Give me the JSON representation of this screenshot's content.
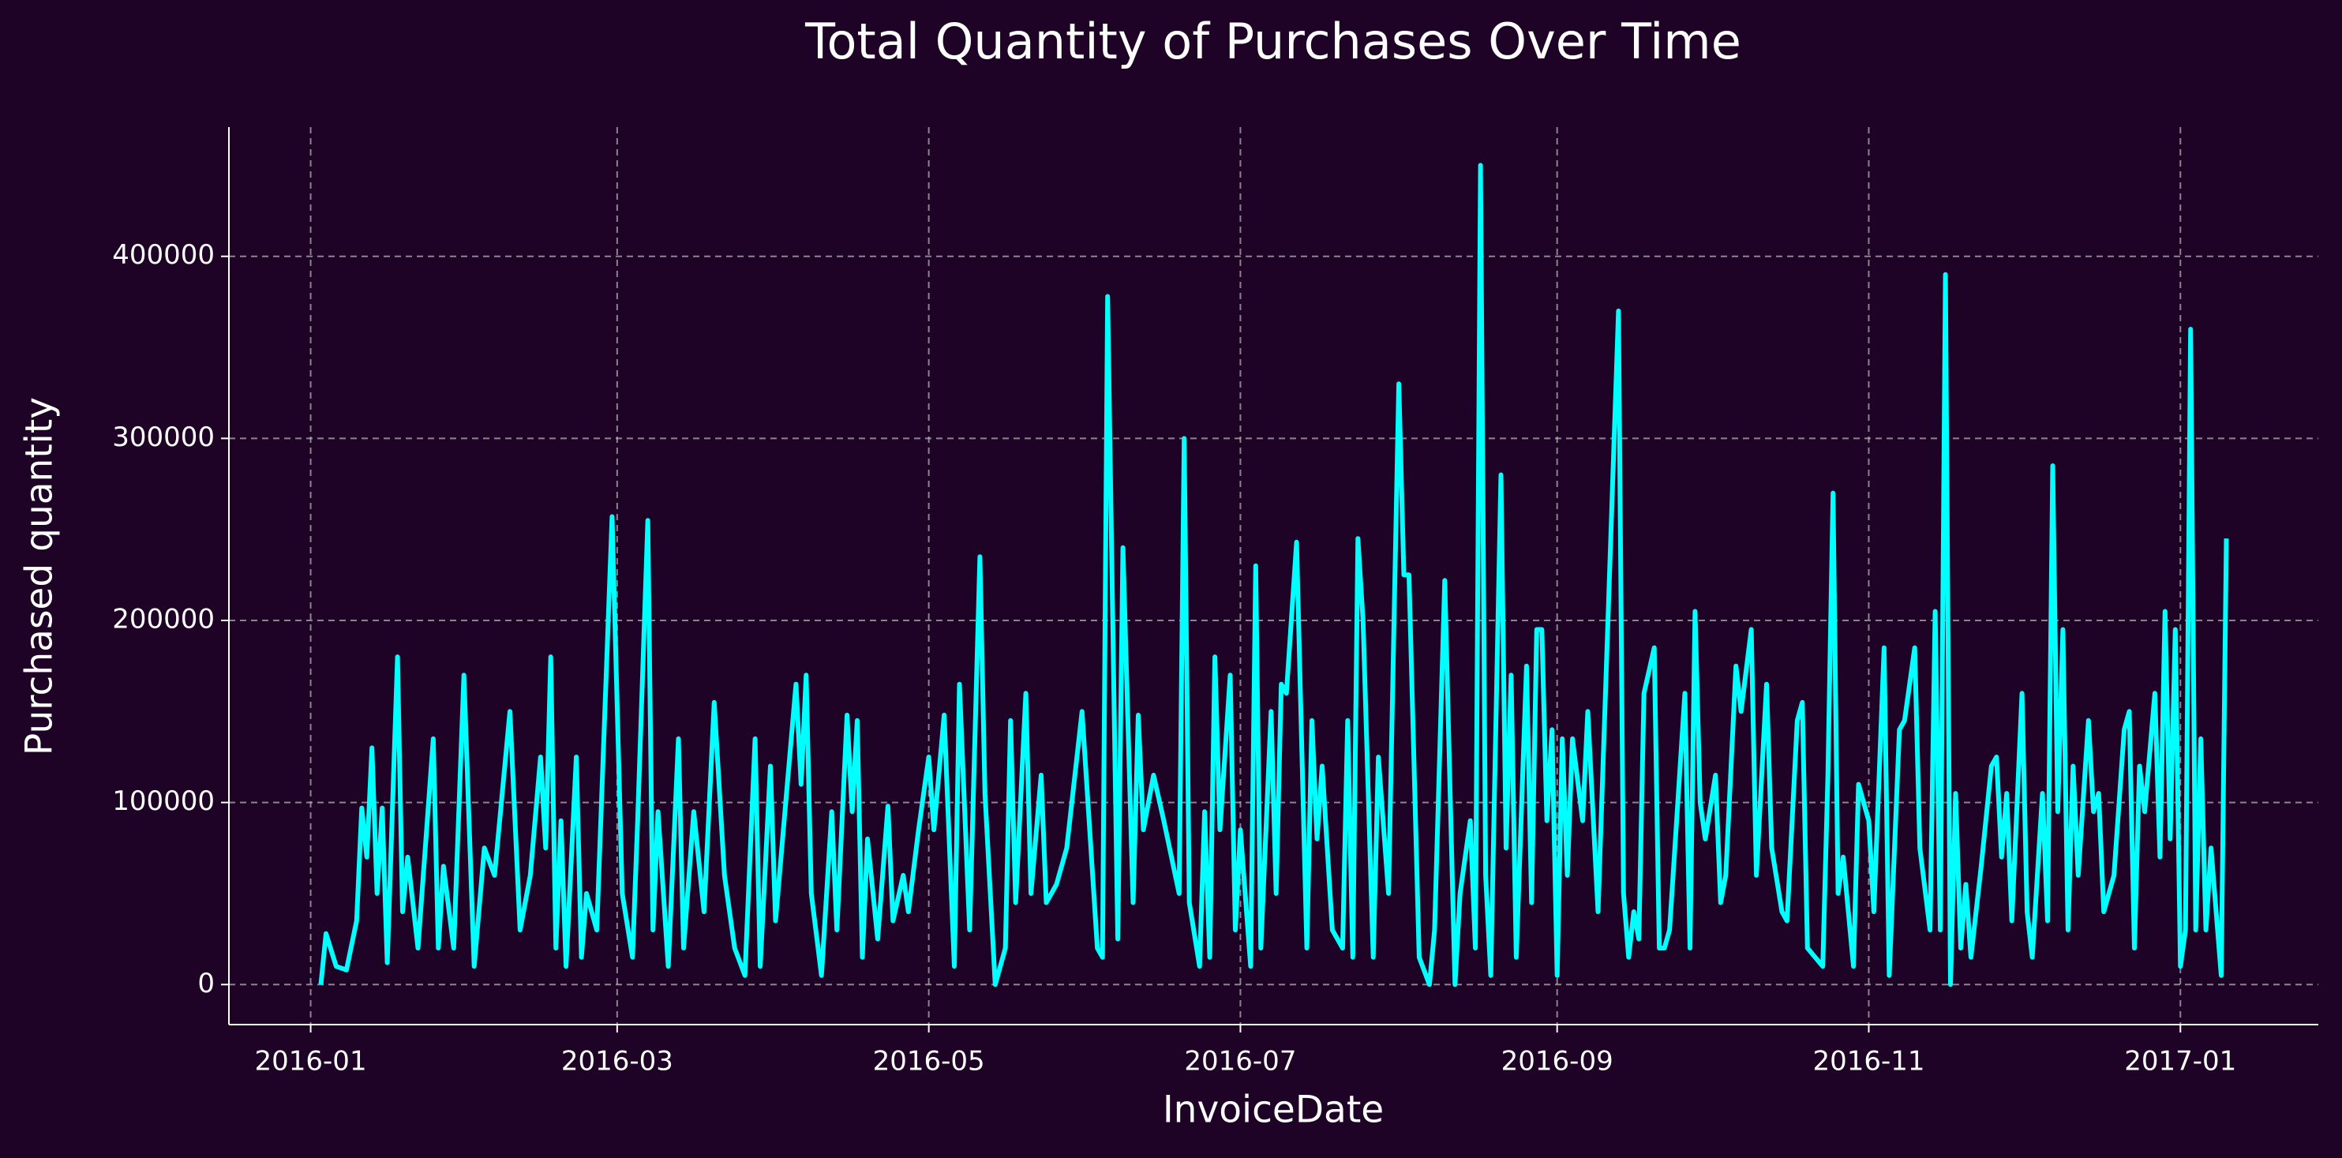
{
  "chart_data": {
    "type": "line",
    "title": "Total Quantity of Purchases Over Time",
    "x_label": "InvoiceDate",
    "y_label": "Purchased quantity",
    "color": "#00ffff",
    "grid": true,
    "xlim": [
      -16,
      393
    ],
    "ylim": [
      -22000,
      471000
    ],
    "xticks": [
      {
        "value": 0,
        "label": "2016-01"
      },
      {
        "value": 60,
        "label": "2016-03"
      },
      {
        "value": 121,
        "label": "2016-05"
      },
      {
        "value": 182,
        "label": "2016-07"
      },
      {
        "value": 244,
        "label": "2016-09"
      },
      {
        "value": 305,
        "label": "2016-11"
      },
      {
        "value": 366,
        "label": "2017-01"
      }
    ],
    "yticks": [
      0,
      100000,
      200000,
      300000,
      400000
    ],
    "x": [
      2,
      3,
      5,
      7,
      9,
      10,
      11,
      12,
      13,
      14,
      15,
      17,
      18,
      19,
      21,
      24,
      25,
      26,
      28,
      30,
      32,
      34,
      36,
      39,
      41,
      43,
      45,
      46,
      47,
      48,
      49,
      50,
      52,
      53,
      54,
      56,
      59,
      61,
      63,
      64,
      66,
      67,
      68,
      70,
      72,
      73,
      75,
      77,
      79,
      81,
      83,
      85,
      87,
      88,
      90,
      91,
      93,
      95,
      96,
      97,
      98,
      100,
      102,
      103,
      105,
      106,
      107,
      108,
      109,
      111,
      113,
      114,
      116,
      117,
      119,
      121,
      122,
      124,
      126,
      127,
      129,
      131,
      132,
      134,
      136,
      137,
      138,
      140,
      141,
      143,
      144,
      146,
      148,
      151,
      154,
      155,
      156,
      158,
      159,
      161,
      162,
      163,
      165,
      167,
      170,
      171,
      172,
      174,
      175,
      176,
      177,
      178,
      180,
      181,
      182,
      184,
      185,
      186,
      188,
      189,
      190,
      191,
      193,
      195,
      196,
      197,
      198,
      200,
      202,
      203,
      204,
      205,
      206,
      208,
      209,
      211,
      213,
      214,
      215,
      217,
      219,
      220,
      222,
      224,
      225,
      227,
      228,
      229,
      230,
      231,
      233,
      234,
      235,
      236,
      238,
      239,
      240,
      241,
      242,
      243,
      244,
      245,
      246,
      247,
      249,
      250,
      252,
      256,
      257,
      258,
      259,
      260,
      261,
      263,
      264,
      265,
      266,
      269,
      270,
      271,
      272,
      273,
      275,
      276,
      277,
      279,
      280,
      282,
      283,
      285,
      286,
      288,
      289,
      291,
      292,
      293,
      296,
      297,
      298,
      299,
      300,
      302,
      303,
      305,
      306,
      308,
      309,
      311,
      312,
      314,
      315,
      317,
      318,
      319,
      320,
      321,
      322,
      323,
      324,
      325,
      327,
      329,
      330,
      331,
      332,
      333,
      335,
      336,
      337,
      339,
      340,
      341,
      342,
      343,
      344,
      345,
      346,
      348,
      349,
      350,
      351,
      353,
      355,
      356,
      357,
      358,
      359,
      361,
      362,
      363,
      364,
      365,
      366,
      367,
      368,
      369,
      370,
      371,
      372,
      374,
      375
    ],
    "values": [
      0,
      28000,
      10000,
      8000,
      35000,
      97000,
      70000,
      130000,
      50000,
      97000,
      12000,
      180000,
      40000,
      70000,
      20000,
      135000,
      20000,
      65000,
      20000,
      170000,
      10000,
      75000,
      60000,
      150000,
      30000,
      60000,
      125000,
      75000,
      180000,
      20000,
      90000,
      10000,
      125000,
      15000,
      50000,
      30000,
      257000,
      50000,
      15000,
      90000,
      255000,
      30000,
      95000,
      10000,
      135000,
      20000,
      95000,
      40000,
      155000,
      60000,
      20000,
      5000,
      135000,
      10000,
      120000,
      35000,
      100000,
      165000,
      110000,
      170000,
      50000,
      5000,
      95000,
      30000,
      148000,
      95000,
      145000,
      15000,
      80000,
      25000,
      98000,
      35000,
      60000,
      40000,
      85000,
      125000,
      85000,
      148000,
      10000,
      165000,
      30000,
      235000,
      105000,
      0,
      20000,
      145000,
      45000,
      160000,
      50000,
      115000,
      45000,
      55000,
      75000,
      150000,
      20000,
      15000,
      378000,
      25000,
      240000,
      45000,
      148000,
      85000,
      115000,
      90000,
      50000,
      300000,
      45000,
      10000,
      95000,
      15000,
      180000,
      85000,
      170000,
      30000,
      85000,
      10000,
      230000,
      20000,
      150000,
      50000,
      165000,
      160000,
      243000,
      20000,
      145000,
      80000,
      120000,
      30000,
      20000,
      145000,
      15000,
      245000,
      200000,
      15000,
      125000,
      50000,
      330000,
      225000,
      225000,
      15000,
      0,
      30000,
      222000,
      0,
      50000,
      90000,
      20000,
      450000,
      60000,
      5000,
      280000,
      75000,
      170000,
      15000,
      175000,
      45000,
      195000,
      195000,
      90000,
      140000,
      5000,
      135000,
      60000,
      135000,
      90000,
      150000,
      40000,
      370000,
      50000,
      15000,
      40000,
      25000,
      160000,
      185000,
      20000,
      20000,
      30000,
      160000,
      20000,
      205000,
      100000,
      80000,
      115000,
      45000,
      60000,
      175000,
      150000,
      195000,
      60000,
      165000,
      75000,
      40000,
      35000,
      145000,
      155000,
      20000,
      10000,
      115000,
      270000,
      50000,
      70000,
      10000,
      110000,
      90000,
      40000,
      185000,
      5000,
      140000,
      145000,
      185000,
      75000,
      30000,
      205000,
      30000,
      390000,
      0,
      105000,
      20000,
      55000,
      15000,
      65000,
      120000,
      125000,
      70000,
      105000,
      35000,
      160000,
      40000,
      15000,
      105000,
      35000,
      285000,
      95000,
      195000,
      30000,
      120000,
      60000,
      145000,
      95000,
      105000,
      40000,
      60000,
      140000,
      150000,
      20000,
      120000,
      95000,
      160000,
      70000,
      205000,
      80000,
      195000,
      10000,
      30000,
      360000,
      30000,
      135000,
      30000,
      75000,
      5000,
      245000
    ]
  }
}
